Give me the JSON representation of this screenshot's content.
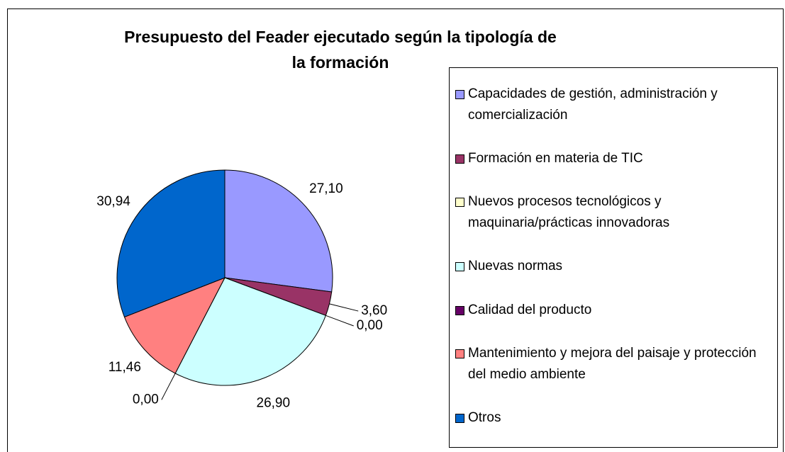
{
  "chart_data": {
    "type": "pie",
    "title": "Presupuesto del Feader ejecutado según la tipología de la formación",
    "categories": [
      "Capacidades de gestión, administración y comercialización",
      "Formación en materia de TIC",
      "Nuevos procesos tecnológicos y maquinaria/prácticas innovadoras",
      "Nuevas normas",
      "Calidad del producto",
      "Mantenimiento y mejora del paisaje y protección del medio ambiente",
      "Otros"
    ],
    "values": [
      27.1,
      3.6,
      0.0,
      26.9,
      0.0,
      11.46,
      30.94
    ],
    "value_labels": [
      "27,10",
      "3,60",
      "0,00",
      "26,90",
      "0,00",
      "11,46",
      "30,94"
    ],
    "colors": [
      "#9999ff",
      "#993366",
      "#ffffcc",
      "#ccffff",
      "#660066",
      "#ff8080",
      "#0066cc"
    ],
    "legend": "right"
  }
}
